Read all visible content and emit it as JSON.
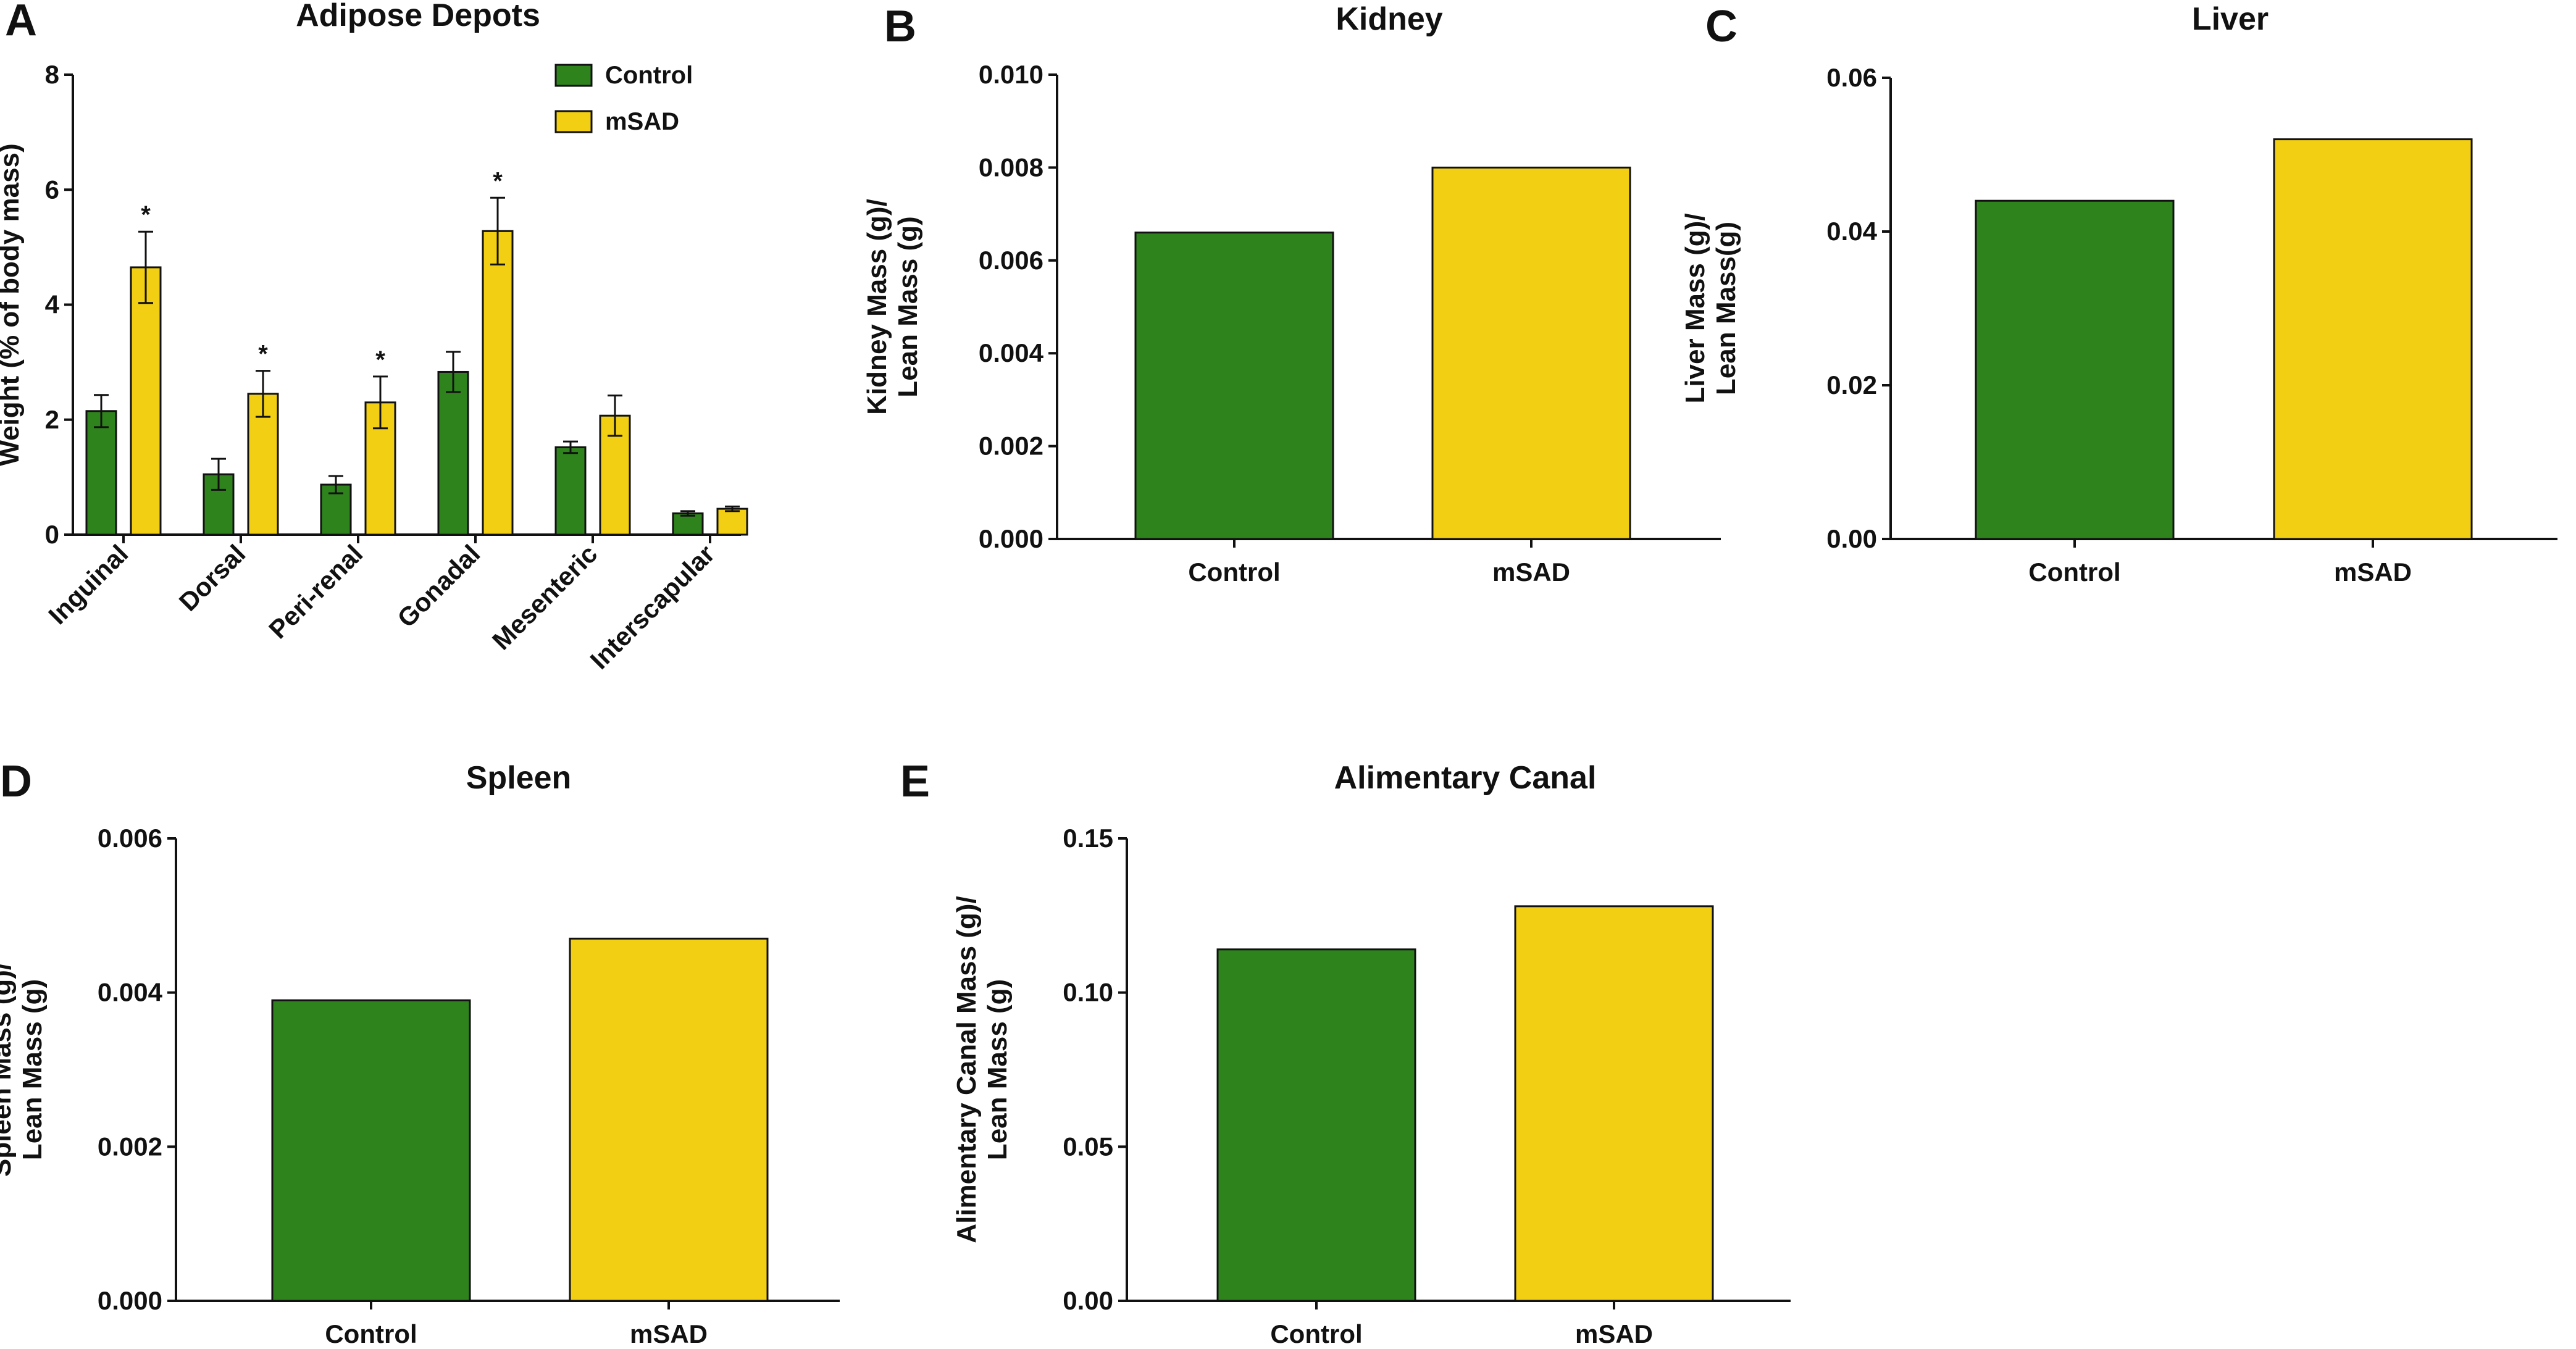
{
  "colors": {
    "control": "#2f831d",
    "msad": "#f2cf13",
    "axis": "#111111"
  },
  "panels": [
    {
      "letter": "A"
    },
    {
      "letter": "B"
    },
    {
      "letter": "C"
    },
    {
      "letter": "D"
    },
    {
      "letter": "E"
    }
  ],
  "chart_data": [
    {
      "panel": "A",
      "type": "bar",
      "title": "Adipose Depots",
      "xlabel": "",
      "ylabel": "Weight (% of body mass)",
      "ylim": [
        0,
        8
      ],
      "yticks": [
        "0",
        "2",
        "4",
        "6",
        "8"
      ],
      "categories": [
        "Inguinal",
        "Dorsal",
        "Peri-renal",
        "Gonadal",
        "Mesenteric",
        "Interscapular"
      ],
      "legend_position": "top-right",
      "series": [
        {
          "name": "Control",
          "color_key": "control",
          "values": [
            2.15,
            1.05,
            0.87,
            2.83,
            1.52,
            0.37
          ],
          "errors": [
            0.28,
            0.27,
            0.15,
            0.35,
            0.1,
            0.04
          ]
        },
        {
          "name": "mSAD",
          "color_key": "msad",
          "values": [
            4.65,
            2.45,
            2.3,
            5.28,
            2.07,
            0.45
          ],
          "errors": [
            0.62,
            0.4,
            0.45,
            0.58,
            0.35,
            0.04
          ]
        }
      ],
      "significance": [
        "*",
        "*",
        "*",
        "*",
        "",
        ""
      ]
    },
    {
      "panel": "B",
      "type": "bar",
      "title": "Kidney",
      "xlabel": "",
      "ylabel_lines": [
        "Kidney Mass (g)/",
        "Lean Mass (g)"
      ],
      "ylim": [
        0,
        0.01
      ],
      "yticks": [
        "0.000",
        "0.002",
        "0.004",
        "0.006",
        "0.008",
        "0.010"
      ],
      "categories": [
        "Control",
        "mSAD"
      ],
      "values": [
        0.0066,
        0.008
      ]
    },
    {
      "panel": "C",
      "type": "bar",
      "title": "Liver",
      "xlabel": "",
      "ylabel_lines": [
        "Liver Mass (g)/",
        "Lean Mass(g)"
      ],
      "ylim": [
        0,
        0.06
      ],
      "yticks": [
        "0.00",
        "0.02",
        "0.04",
        "0.06"
      ],
      "categories": [
        "Control",
        "mSAD"
      ],
      "values": [
        0.044,
        0.052
      ]
    },
    {
      "panel": "D",
      "type": "bar",
      "title": "Spleen",
      "xlabel": "",
      "ylabel_lines": [
        "Spleen Mass (g)/",
        "Lean Mass (g)"
      ],
      "ylim": [
        0,
        0.006
      ],
      "yticks": [
        "0.000",
        "0.002",
        "0.004",
        "0.006"
      ],
      "categories": [
        "Control",
        "mSAD"
      ],
      "values": [
        0.0039,
        0.0047
      ]
    },
    {
      "panel": "E",
      "type": "bar",
      "title": "Alimentary Canal",
      "xlabel": "",
      "ylabel_lines": [
        "Alimentary Canal Mass (g)/",
        "Lean Mass (g)"
      ],
      "ylim": [
        0,
        0.15
      ],
      "yticks": [
        "0.00",
        "0.05",
        "0.10",
        "0.15"
      ],
      "categories": [
        "Control",
        "mSAD"
      ],
      "values": [
        0.114,
        0.128
      ]
    }
  ]
}
